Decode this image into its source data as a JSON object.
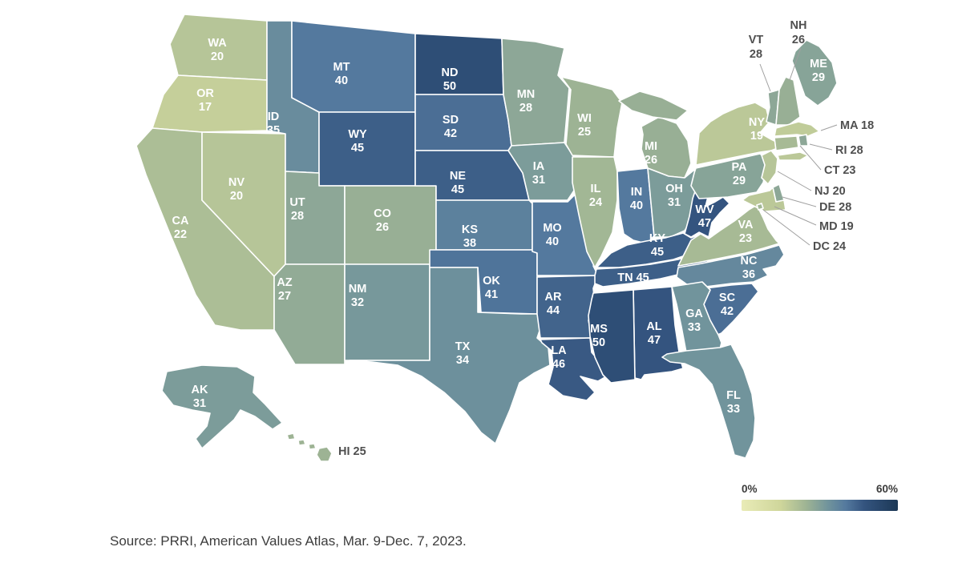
{
  "chart_data": {
    "type": "heatmap",
    "subtype": "us_state_choropleth",
    "title": "",
    "unit": "%",
    "legend": {
      "min": 0,
      "max": 60,
      "min_label": "0%",
      "max_label": "60%",
      "position": "bottom-right"
    },
    "color_stops": [
      [
        0,
        "#e9ebb7"
      ],
      [
        15,
        "#cfd69b"
      ],
      [
        25,
        "#9db394"
      ],
      [
        33,
        "#71949c"
      ],
      [
        40,
        "#54799e"
      ],
      [
        47,
        "#34547f"
      ],
      [
        60,
        "#1c3856"
      ]
    ],
    "series": [
      {
        "state": "AK",
        "value": 31
      },
      {
        "state": "AL",
        "value": 47
      },
      {
        "state": "AR",
        "value": 44
      },
      {
        "state": "AZ",
        "value": 27
      },
      {
        "state": "CA",
        "value": 22
      },
      {
        "state": "CO",
        "value": 26
      },
      {
        "state": "CT",
        "value": 23
      },
      {
        "state": "DC",
        "value": 24
      },
      {
        "state": "DE",
        "value": 28
      },
      {
        "state": "FL",
        "value": 33
      },
      {
        "state": "GA",
        "value": 33
      },
      {
        "state": "HI",
        "value": 25
      },
      {
        "state": "IA",
        "value": 31
      },
      {
        "state": "ID",
        "value": 35
      },
      {
        "state": "IL",
        "value": 24
      },
      {
        "state": "IN",
        "value": 40
      },
      {
        "state": "KS",
        "value": 38
      },
      {
        "state": "KY",
        "value": 45
      },
      {
        "state": "LA",
        "value": 46
      },
      {
        "state": "MA",
        "value": 18
      },
      {
        "state": "MD",
        "value": 19
      },
      {
        "state": "ME",
        "value": 29
      },
      {
        "state": "MI",
        "value": 26
      },
      {
        "state": "MN",
        "value": 28
      },
      {
        "state": "MO",
        "value": 40
      },
      {
        "state": "MS",
        "value": 50
      },
      {
        "state": "MT",
        "value": 40
      },
      {
        "state": "NC",
        "value": 36
      },
      {
        "state": "ND",
        "value": 50
      },
      {
        "state": "NE",
        "value": 45
      },
      {
        "state": "NH",
        "value": 26
      },
      {
        "state": "NJ",
        "value": 20
      },
      {
        "state": "NM",
        "value": 32
      },
      {
        "state": "NV",
        "value": 20
      },
      {
        "state": "NY",
        "value": 19
      },
      {
        "state": "OH",
        "value": 31
      },
      {
        "state": "OK",
        "value": 41
      },
      {
        "state": "OR",
        "value": 17
      },
      {
        "state": "PA",
        "value": 29
      },
      {
        "state": "RI",
        "value": 28
      },
      {
        "state": "SC",
        "value": 42
      },
      {
        "state": "SD",
        "value": 42
      },
      {
        "state": "TN",
        "value": 45
      },
      {
        "state": "TX",
        "value": 34
      },
      {
        "state": "UT",
        "value": 28
      },
      {
        "state": "VA",
        "value": 23
      },
      {
        "state": "VT",
        "value": 28
      },
      {
        "state": "WA",
        "value": 20
      },
      {
        "state": "WI",
        "value": 25
      },
      {
        "state": "WV",
        "value": 47
      },
      {
        "state": "WY",
        "value": 45
      }
    ]
  },
  "source_note": "Source: PRRI, American Values Atlas, Mar. 9-Dec. 7, 2023."
}
